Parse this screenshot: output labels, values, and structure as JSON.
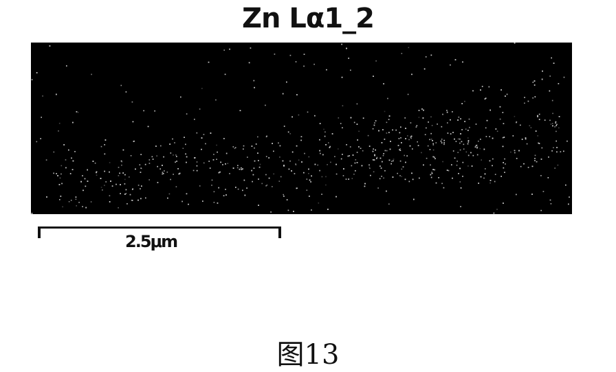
{
  "map": {
    "title": "Zn Lα1_2",
    "background": "#000000",
    "signal_color": "#c8c8c8"
  },
  "scale_bar": {
    "label": "2.5μm"
  },
  "caption": "图13"
}
